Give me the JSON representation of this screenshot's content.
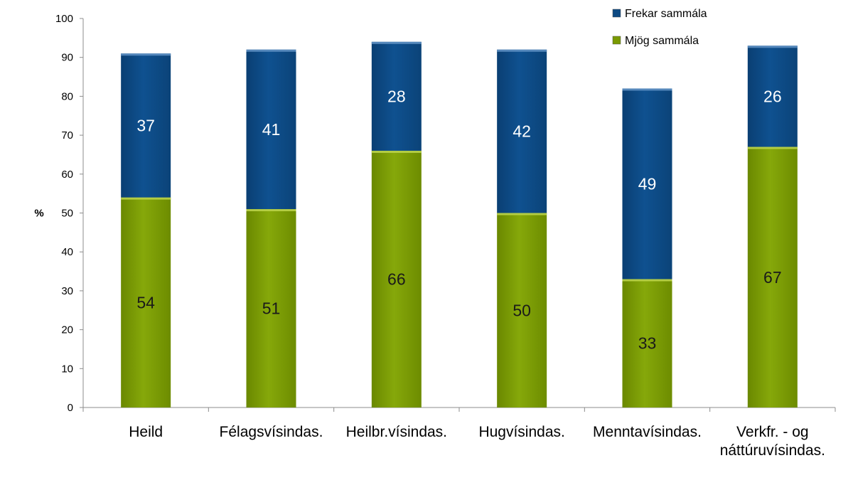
{
  "chart_data": {
    "type": "bar",
    "stacked": true,
    "title": "",
    "xlabel": "",
    "ylabel": "%",
    "ylim": [
      0,
      100
    ],
    "yticks": [
      0,
      10,
      20,
      30,
      40,
      50,
      60,
      70,
      80,
      90,
      100
    ],
    "grid": false,
    "legend_position": "top-right",
    "categories": [
      [
        "Heild"
      ],
      [
        "Félagsvísindas."
      ],
      [
        "Heilbr.vísindas."
      ],
      [
        "Hugvísindas."
      ],
      [
        "Menntavísindas."
      ],
      [
        "Verkfr. - og",
        "náttúruvísindas."
      ]
    ],
    "series": [
      {
        "name": "Mjög sammála",
        "color": "#7a9a01",
        "label_color": "#1a1a1a",
        "values": [
          54,
          51,
          66,
          50,
          33,
          67
        ]
      },
      {
        "name": "Frekar sammála",
        "color": "#0d4a83",
        "label_color": "#ffffff",
        "values": [
          37,
          41,
          28,
          42,
          49,
          26
        ]
      }
    ],
    "legend_order": [
      "Frekar sammála",
      "Mjög sammála"
    ]
  }
}
